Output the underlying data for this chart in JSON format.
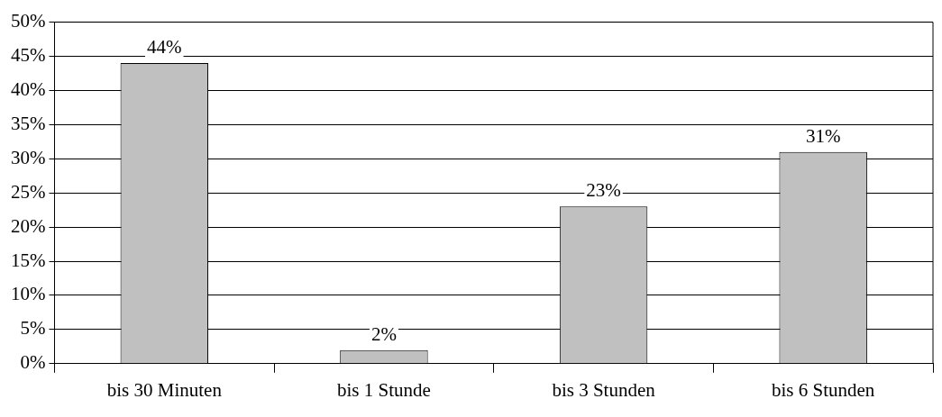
{
  "chart_data": {
    "type": "bar",
    "categories": [
      "bis 30 Minuten",
      "bis 1 Stunde",
      "bis 3 Stunden",
      "bis 6 Stunden"
    ],
    "values": [
      44,
      2,
      23,
      31
    ],
    "color": "#c0c0c0",
    "value_labels": [
      "44%",
      "2%",
      "23%",
      "31%"
    ],
    "ylim": [
      0,
      50
    ],
    "yticks": [
      {
        "value": 0,
        "label": "0%"
      },
      {
        "value": 5,
        "label": "5%"
      },
      {
        "value": 10,
        "label": "10%"
      },
      {
        "value": 15,
        "label": "15%"
      },
      {
        "value": 20,
        "label": "20%"
      },
      {
        "value": 25,
        "label": "25%"
      },
      {
        "value": 30,
        "label": "30%"
      },
      {
        "value": 35,
        "label": "35%"
      },
      {
        "value": 40,
        "label": "40%"
      },
      {
        "value": 45,
        "label": "45%"
      },
      {
        "value": 50,
        "label": "50%"
      }
    ],
    "grid": "y",
    "legend": false
  }
}
